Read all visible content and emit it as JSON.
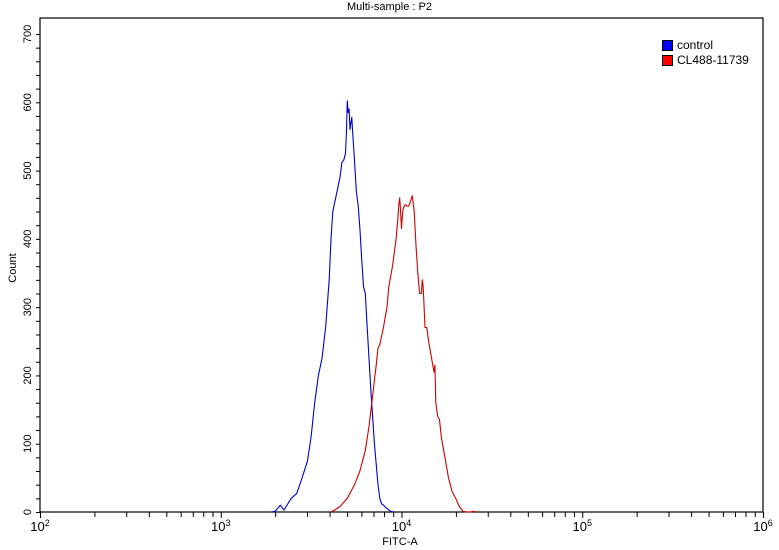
{
  "chart_data": {
    "type": "line",
    "title": "Multi-sample : P2",
    "xlabel": "FITC-A",
    "ylabel": "Count",
    "xscale": "log",
    "xlim": [
      100,
      1000000
    ],
    "ylim": [
      0,
      720
    ],
    "x_ticks": [
      {
        "base": "10",
        "exp": "2"
      },
      {
        "base": "10",
        "exp": "3"
      },
      {
        "base": "10",
        "exp": "4"
      },
      {
        "base": "10",
        "exp": "5"
      },
      {
        "base": "10",
        "exp": "6"
      }
    ],
    "y_ticks": [
      "0",
      "100",
      "200",
      "300",
      "400",
      "500",
      "600",
      "700"
    ],
    "y_tick_values": [
      0,
      100,
      200,
      300,
      400,
      500,
      600,
      700
    ],
    "grid": false,
    "legend_position": "top-right",
    "series": [
      {
        "name": "control",
        "color": "#0000cc",
        "swatch_color": "#0000ff",
        "points_log10x_count": [
          [
            3.28,
            0
          ],
          [
            3.3,
            1
          ],
          [
            3.33,
            10
          ],
          [
            3.35,
            3
          ],
          [
            3.39,
            20
          ],
          [
            3.42,
            27
          ],
          [
            3.45,
            50
          ],
          [
            3.48,
            75
          ],
          [
            3.5,
            110
          ],
          [
            3.52,
            160
          ],
          [
            3.54,
            200
          ],
          [
            3.56,
            225
          ],
          [
            3.58,
            270
          ],
          [
            3.6,
            340
          ],
          [
            3.61,
            400
          ],
          [
            3.62,
            440
          ],
          [
            3.64,
            465
          ],
          [
            3.66,
            490
          ],
          [
            3.67,
            512
          ],
          [
            3.68,
            515
          ],
          [
            3.69,
            525
          ],
          [
            3.695,
            555
          ],
          [
            3.7,
            602
          ],
          [
            3.705,
            585
          ],
          [
            3.71,
            590
          ],
          [
            3.715,
            560
          ],
          [
            3.72,
            570
          ],
          [
            3.725,
            578
          ],
          [
            3.73,
            555
          ],
          [
            3.74,
            515
          ],
          [
            3.75,
            470
          ],
          [
            3.76,
            450
          ],
          [
            3.77,
            415
          ],
          [
            3.78,
            370
          ],
          [
            3.79,
            330
          ],
          [
            3.8,
            320
          ],
          [
            3.81,
            270
          ],
          [
            3.82,
            225
          ],
          [
            3.83,
            180
          ],
          [
            3.84,
            140
          ],
          [
            3.85,
            100
          ],
          [
            3.86,
            70
          ],
          [
            3.87,
            40
          ],
          [
            3.88,
            20
          ],
          [
            3.89,
            12
          ],
          [
            3.9,
            10
          ],
          [
            3.92,
            5
          ],
          [
            3.94,
            1
          ],
          [
            3.96,
            0
          ]
        ]
      },
      {
        "name": "CL488-11739",
        "color": "#cc0000",
        "swatch_color": "#ff0000",
        "points_log10x_count": [
          [
            3.61,
            0
          ],
          [
            3.63,
            3
          ],
          [
            3.66,
            8
          ],
          [
            3.7,
            20
          ],
          [
            3.74,
            40
          ],
          [
            3.77,
            60
          ],
          [
            3.8,
            90
          ],
          [
            3.82,
            125
          ],
          [
            3.84,
            170
          ],
          [
            3.86,
            215
          ],
          [
            3.87,
            240
          ],
          [
            3.88,
            245
          ],
          [
            3.9,
            270
          ],
          [
            3.92,
            300
          ],
          [
            3.93,
            330
          ],
          [
            3.95,
            360
          ],
          [
            3.97,
            400
          ],
          [
            3.98,
            430
          ],
          [
            3.985,
            450
          ],
          [
            3.99,
            460
          ],
          [
            3.995,
            440
          ],
          [
            4.0,
            415
          ],
          [
            4.005,
            435
          ],
          [
            4.01,
            445
          ],
          [
            4.02,
            450
          ],
          [
            4.03,
            448
          ],
          [
            4.04,
            448
          ],
          [
            4.05,
            455
          ],
          [
            4.06,
            463
          ],
          [
            4.07,
            440
          ],
          [
            4.08,
            390
          ],
          [
            4.09,
            350
          ],
          [
            4.1,
            320
          ],
          [
            4.11,
            320
          ],
          [
            4.115,
            340
          ],
          [
            4.12,
            330
          ],
          [
            4.13,
            270
          ],
          [
            4.14,
            270
          ],
          [
            4.15,
            250
          ],
          [
            4.16,
            235
          ],
          [
            4.18,
            205
          ],
          [
            4.185,
            215
          ],
          [
            4.19,
            160
          ],
          [
            4.2,
            140
          ],
          [
            4.21,
            135
          ],
          [
            4.22,
            110
          ],
          [
            4.24,
            80
          ],
          [
            4.26,
            50
          ],
          [
            4.28,
            30
          ],
          [
            4.3,
            20
          ],
          [
            4.32,
            8
          ],
          [
            4.34,
            1
          ],
          [
            4.36,
            0
          ],
          [
            4.38,
            0
          ],
          [
            4.4,
            1
          ],
          [
            4.41,
            0
          ]
        ]
      }
    ]
  }
}
